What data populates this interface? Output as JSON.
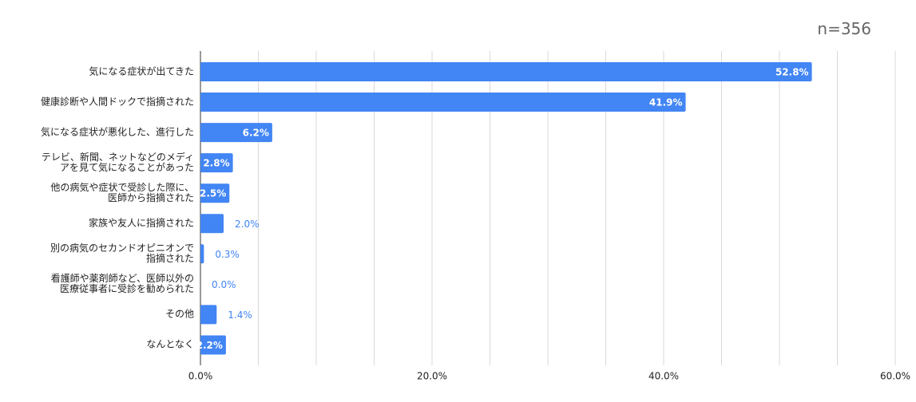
{
  "note": "n=356",
  "chart_data": {
    "type": "hbar",
    "categories": [
      "気になる症状が出てきた",
      "健康診断や人間ドックで指摘された",
      "気になる症状が悪化した、進行した",
      "テレビ、新聞、ネットなどのメディ\nアを見て気になることがあった",
      "他の病気や症状で受診した際に、\n医師から指摘された",
      "家族や友人に指摘された",
      "別の病気のセカンドオピニオンで\n指摘された",
      "看護師や薬剤師など、医師以外の\n医療従事者に受診を勧められた",
      "その他",
      "なんとなく"
    ],
    "values": [
      52.8,
      41.9,
      6.2,
      2.8,
      2.5,
      2.0,
      0.3,
      0.0,
      1.4,
      2.2
    ],
    "value_labels": [
      "52.8%",
      "41.9%",
      "6.2%",
      "2.8%",
      "2.5%",
      "2.0%",
      "0.3%",
      "0.0%",
      "1.4%",
      "2.2%"
    ],
    "color": "#4285f4",
    "xlim": [
      0,
      60
    ],
    "xticks": [
      {
        "value": 0,
        "label": "0.0%"
      },
      {
        "value": 5,
        "label": null
      },
      {
        "value": 10,
        "label": null
      },
      {
        "value": 15,
        "label": null
      },
      {
        "value": 20,
        "label": "20.0%"
      },
      {
        "value": 25,
        "label": null
      },
      {
        "value": 30,
        "label": null
      },
      {
        "value": 35,
        "label": null
      },
      {
        "value": 40,
        "label": "40.0%"
      },
      {
        "value": 45,
        "label": null
      },
      {
        "value": 50,
        "label": null
      },
      {
        "value": 55,
        "label": null
      },
      {
        "value": 60,
        "label": "60.0%"
      }
    ],
    "grid": true
  }
}
